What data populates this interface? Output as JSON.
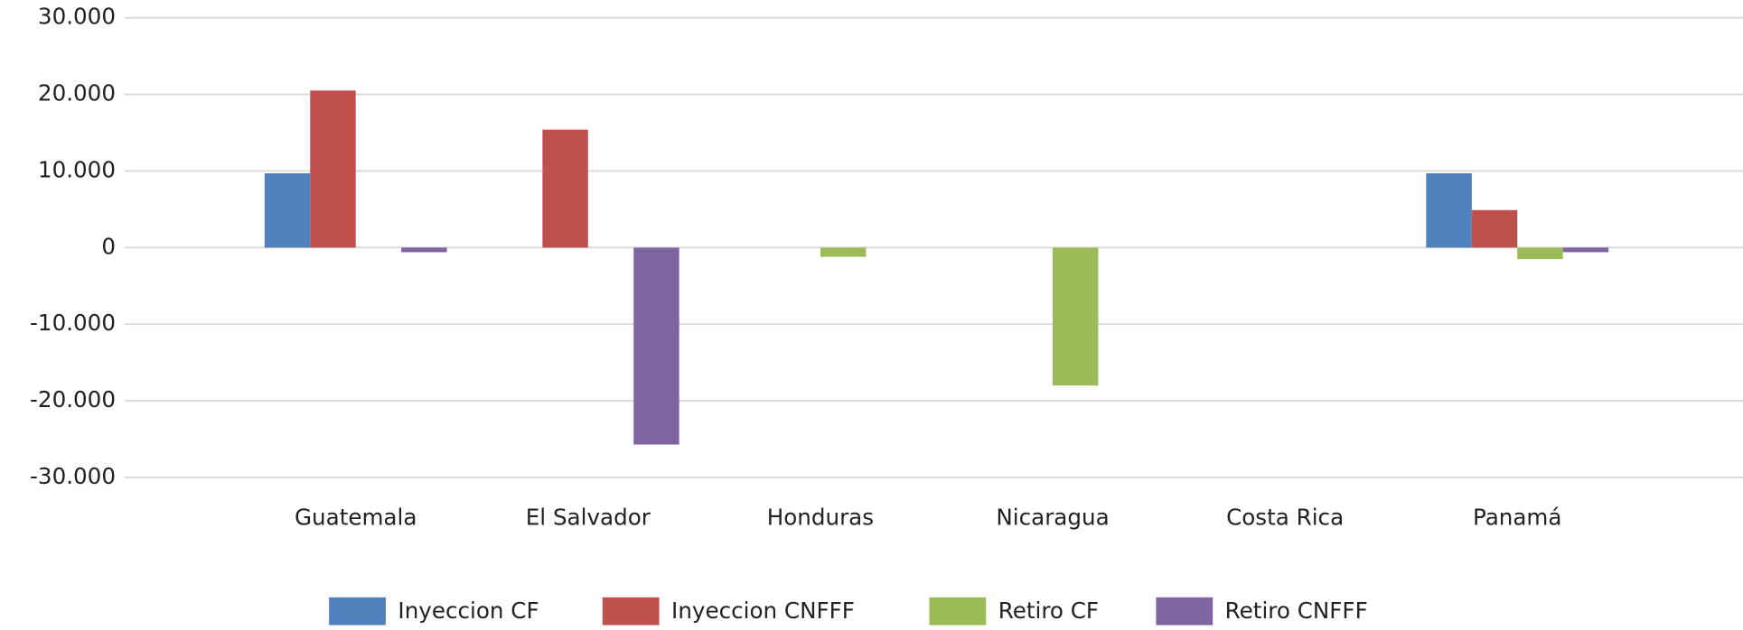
{
  "chart_data": {
    "type": "bar",
    "categories": [
      "Guatemala",
      "El Salvador",
      "Honduras",
      "Nicaragua",
      "Costa Rica",
      "Panamá"
    ],
    "series": [
      {
        "name": "Inyeccion CF",
        "color": "#4f81bd",
        "values": [
          9700,
          0,
          0,
          0,
          0,
          9700
        ]
      },
      {
        "name": "Inyeccion CNFFF",
        "color": "#c0504d",
        "values": [
          20500,
          15400,
          0,
          0,
          0,
          4900
        ]
      },
      {
        "name": "Retiro CF",
        "color": "#9bbb59",
        "values": [
          0,
          0,
          -1200,
          -18000,
          0,
          -1500
        ]
      },
      {
        "name": "Retiro CNFFF",
        "color": "#8064a2",
        "values": [
          -600,
          -25700,
          0,
          0,
          0,
          -600
        ]
      }
    ],
    "ylim": [
      -30000,
      30000
    ],
    "yticks": [
      {
        "value": -30000,
        "label": "-30.000"
      },
      {
        "value": -20000,
        "label": "-20.000"
      },
      {
        "value": -10000,
        "label": "-10.000"
      },
      0,
      {
        "value": 10000,
        "label": "10.000"
      },
      {
        "value": 20000,
        "label": "20.000"
      },
      {
        "value": 30000,
        "label": "30.000"
      }
    ],
    "grid": true,
    "legend": "bottom"
  }
}
